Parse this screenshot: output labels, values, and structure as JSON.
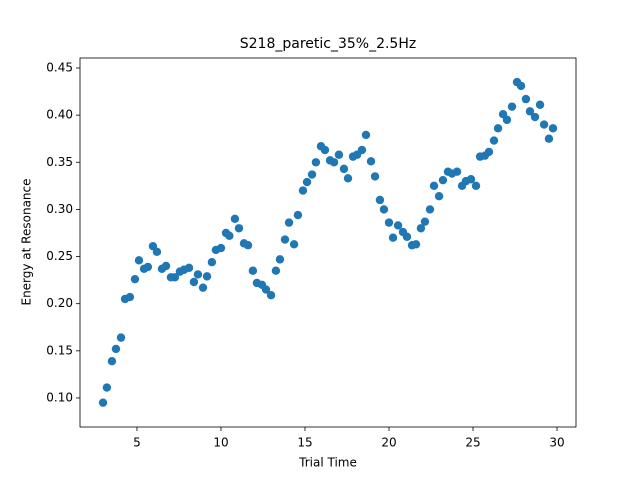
{
  "chart_data": {
    "type": "scatter",
    "title": "S218_paretic_35%_2.5Hz",
    "x_label": "Trial Time",
    "y_label": "Energy at Resonance",
    "color": "#1f77b4",
    "x": [
      2.98,
      3.21,
      3.51,
      3.75,
      4.05,
      4.29,
      4.58,
      4.88,
      5.12,
      5.42,
      5.65,
      5.95,
      6.19,
      6.49,
      6.73,
      7.02,
      7.26,
      7.56,
      7.8,
      8.1,
      8.39,
      8.63,
      8.93,
      9.17,
      9.46,
      9.7,
      10.0,
      10.3,
      10.5,
      10.83,
      11.07,
      11.37,
      11.61,
      11.9,
      12.14,
      12.44,
      12.68,
      12.98,
      13.27,
      13.51,
      13.81,
      14.05,
      14.35,
      14.58,
      14.88,
      15.12,
      15.42,
      15.65,
      15.95,
      16.19,
      16.49,
      16.73,
      17.02,
      17.32,
      17.56,
      17.86,
      18.1,
      18.39,
      18.63,
      18.93,
      19.17,
      19.46,
      19.7,
      20.0,
      20.24,
      20.54,
      20.83,
      21.07,
      21.37,
      21.61,
      21.9,
      22.14,
      22.44,
      22.68,
      22.98,
      23.21,
      23.51,
      23.75,
      24.05,
      24.35,
      24.58,
      24.88,
      25.18,
      25.42,
      25.71,
      25.95,
      26.25,
      26.49,
      26.79,
      27.02,
      27.32,
      27.62,
      27.86,
      28.15,
      28.39,
      28.69,
      28.99,
      29.23,
      29.52,
      29.76
    ],
    "values": [
      0.095,
      0.111,
      0.139,
      0.152,
      0.164,
      0.205,
      0.207,
      0.226,
      0.246,
      0.237,
      0.239,
      0.261,
      0.255,
      0.237,
      0.24,
      0.228,
      0.228,
      0.234,
      0.236,
      0.238,
      0.223,
      0.231,
      0.217,
      0.229,
      0.244,
      0.257,
      0.259,
      0.275,
      0.272,
      0.29,
      0.28,
      0.264,
      0.262,
      0.235,
      0.222,
      0.22,
      0.215,
      0.209,
      0.235,
      0.247,
      0.268,
      0.286,
      0.263,
      0.294,
      0.32,
      0.329,
      0.337,
      0.35,
      0.367,
      0.363,
      0.352,
      0.35,
      0.358,
      0.343,
      0.333,
      0.356,
      0.358,
      0.363,
      0.379,
      0.351,
      0.335,
      0.31,
      0.3,
      0.286,
      0.27,
      0.283,
      0.276,
      0.271,
      0.262,
      0.263,
      0.28,
      0.287,
      0.3,
      0.325,
      0.314,
      0.331,
      0.34,
      0.338,
      0.34,
      0.325,
      0.33,
      0.332,
      0.325,
      0.356,
      0.357,
      0.361,
      0.373,
      0.386,
      0.401,
      0.395,
      0.409,
      0.435,
      0.431,
      0.417,
      0.404,
      0.398,
      0.411,
      0.39,
      0.375,
      0.386
    ],
    "xlim": [
      1.61,
      31.13
    ],
    "ylim": [
      0.0692,
      0.4606
    ],
    "xticks": [
      5,
      10,
      15,
      20,
      25,
      30
    ],
    "yticks": [
      {
        "value": 0.1,
        "label": "0.10"
      },
      {
        "value": 0.15,
        "label": "0.15"
      },
      {
        "value": 0.2,
        "label": "0.20"
      },
      {
        "value": 0.25,
        "label": "0.25"
      },
      {
        "value": 0.3,
        "label": "0.30"
      },
      {
        "value": 0.35,
        "label": "0.35"
      },
      {
        "value": 0.4,
        "label": "0.40"
      },
      {
        "value": 0.45,
        "label": "0.45"
      }
    ]
  }
}
